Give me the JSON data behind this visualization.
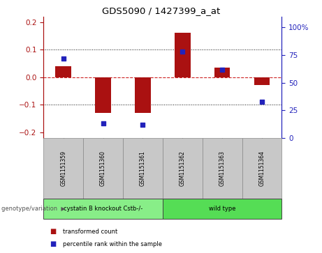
{
  "title": "GDS5090 / 1427399_a_at",
  "samples": [
    "GSM1151359",
    "GSM1151360",
    "GSM1151361",
    "GSM1151362",
    "GSM1151363",
    "GSM1151364"
  ],
  "transformed_counts": [
    0.04,
    -0.13,
    -0.13,
    0.16,
    0.035,
    -0.028
  ],
  "percentile_ranks": [
    72,
    13,
    12,
    78,
    62,
    33
  ],
  "ylim_left": [
    -0.22,
    0.22
  ],
  "ylim_right": [
    0,
    110
  ],
  "yticks_left": [
    -0.2,
    -0.1,
    0.0,
    0.1,
    0.2
  ],
  "yticks_right": [
    0,
    25,
    50,
    75,
    100
  ],
  "ytick_labels_right": [
    "0",
    "25",
    "50",
    "75",
    "100%"
  ],
  "bar_color": "#AA1111",
  "dot_color": "#2222BB",
  "groups": [
    {
      "label": "cystatin B knockout Cstb-/-",
      "indices": [
        0,
        1,
        2
      ],
      "color": "#88EE88"
    },
    {
      "label": "wild type",
      "indices": [
        3,
        4,
        5
      ],
      "color": "#55DD55"
    }
  ],
  "group_row_label": "genotype/variation",
  "legend_items": [
    {
      "color": "#AA1111",
      "label": "transformed count"
    },
    {
      "color": "#2222BB",
      "label": "percentile rank within the sample"
    }
  ],
  "zero_line_color": "#CC2222",
  "grid_color": "#111111",
  "sample_box_color": "#C8C8C8"
}
